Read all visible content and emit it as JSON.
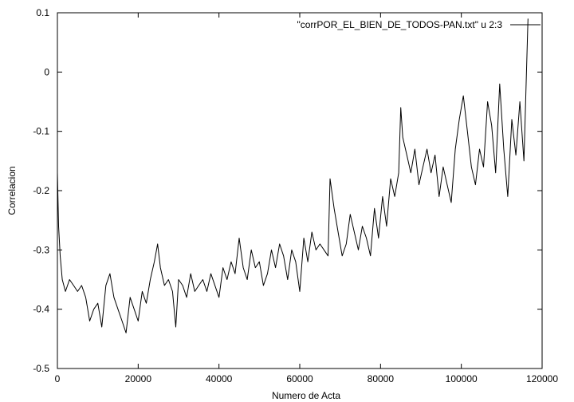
{
  "chart_data": {
    "type": "line",
    "title": "",
    "xlabel": "Numero de Acta",
    "ylabel": "Correlacion",
    "xlim": [
      0,
      120000
    ],
    "ylim": [
      -0.5,
      0.1
    ],
    "x_ticks": [
      0,
      20000,
      40000,
      60000,
      80000,
      100000,
      120000
    ],
    "x_tick_labels": [
      "0",
      "20000",
      "40000",
      "60000",
      "80000",
      "100000",
      "120000"
    ],
    "y_ticks": [
      -0.5,
      -0.4,
      -0.3,
      -0.2,
      -0.1,
      0,
      0.1
    ],
    "y_tick_labels": [
      "-0.5",
      "-0.4",
      "-0.3",
      "-0.2",
      "-0.1",
      "0",
      "0.1"
    ],
    "grid": false,
    "legend_position": "top-right",
    "line_color": "#000000",
    "series": [
      {
        "name": "\"corrPOR_EL_BIEN_DE_TODOS-PAN.txt\" u 2:3",
        "x": [
          0,
          300,
          700,
          1200,
          2000,
          3000,
          4000,
          5000,
          6000,
          7000,
          8000,
          9000,
          10000,
          11000,
          12000,
          13000,
          14000,
          15000,
          16000,
          17000,
          18000,
          19000,
          20000,
          21000,
          22000,
          23000,
          24000,
          24800,
          25500,
          26500,
          27500,
          28500,
          29300,
          30000,
          31000,
          32000,
          33000,
          34000,
          35000,
          36000,
          37000,
          38000,
          39000,
          40000,
          41000,
          42000,
          43000,
          44000,
          45000,
          46000,
          47000,
          48000,
          49000,
          50000,
          51000,
          52000,
          53000,
          54000,
          55000,
          56000,
          57000,
          58000,
          59000,
          60000,
          61000,
          62000,
          63000,
          64000,
          65000,
          66000,
          67000,
          67500,
          68500,
          69500,
          70500,
          71500,
          72500,
          73500,
          74500,
          75500,
          76500,
          77500,
          78500,
          79500,
          80500,
          81500,
          82500,
          83500,
          84500,
          85000,
          85500,
          86500,
          87500,
          88500,
          89500,
          90500,
          91500,
          92500,
          93500,
          94500,
          95500,
          96500,
          97500,
          98500,
          99500,
          100500,
          101500,
          102500,
          103500,
          104500,
          105500,
          106500,
          107500,
          108500,
          109500,
          110500,
          111500,
          112500,
          113500,
          114500,
          115500,
          116500
        ],
        "y": [
          -0.17,
          -0.26,
          -0.31,
          -0.35,
          -0.37,
          -0.35,
          -0.36,
          -0.37,
          -0.36,
          -0.38,
          -0.42,
          -0.4,
          -0.39,
          -0.43,
          -0.36,
          -0.34,
          -0.38,
          -0.4,
          -0.42,
          -0.44,
          -0.38,
          -0.4,
          -0.42,
          -0.37,
          -0.39,
          -0.35,
          -0.32,
          -0.29,
          -0.33,
          -0.36,
          -0.35,
          -0.37,
          -0.43,
          -0.35,
          -0.36,
          -0.38,
          -0.34,
          -0.37,
          -0.36,
          -0.35,
          -0.37,
          -0.34,
          -0.36,
          -0.38,
          -0.33,
          -0.35,
          -0.32,
          -0.34,
          -0.28,
          -0.33,
          -0.35,
          -0.3,
          -0.33,
          -0.32,
          -0.36,
          -0.34,
          -0.3,
          -0.33,
          -0.29,
          -0.31,
          -0.35,
          -0.3,
          -0.32,
          -0.37,
          -0.28,
          -0.32,
          -0.27,
          -0.3,
          -0.29,
          -0.3,
          -0.31,
          -0.18,
          -0.23,
          -0.27,
          -0.31,
          -0.29,
          -0.24,
          -0.27,
          -0.3,
          -0.26,
          -0.28,
          -0.31,
          -0.23,
          -0.28,
          -0.21,
          -0.26,
          -0.18,
          -0.21,
          -0.17,
          -0.06,
          -0.11,
          -0.14,
          -0.17,
          -0.13,
          -0.19,
          -0.16,
          -0.13,
          -0.17,
          -0.14,
          -0.21,
          -0.16,
          -0.19,
          -0.22,
          -0.13,
          -0.08,
          -0.04,
          -0.1,
          -0.16,
          -0.19,
          -0.13,
          -0.16,
          -0.05,
          -0.09,
          -0.17,
          -0.02,
          -0.13,
          -0.21,
          -0.08,
          -0.14,
          -0.05,
          -0.15,
          0.09
        ]
      }
    ]
  }
}
